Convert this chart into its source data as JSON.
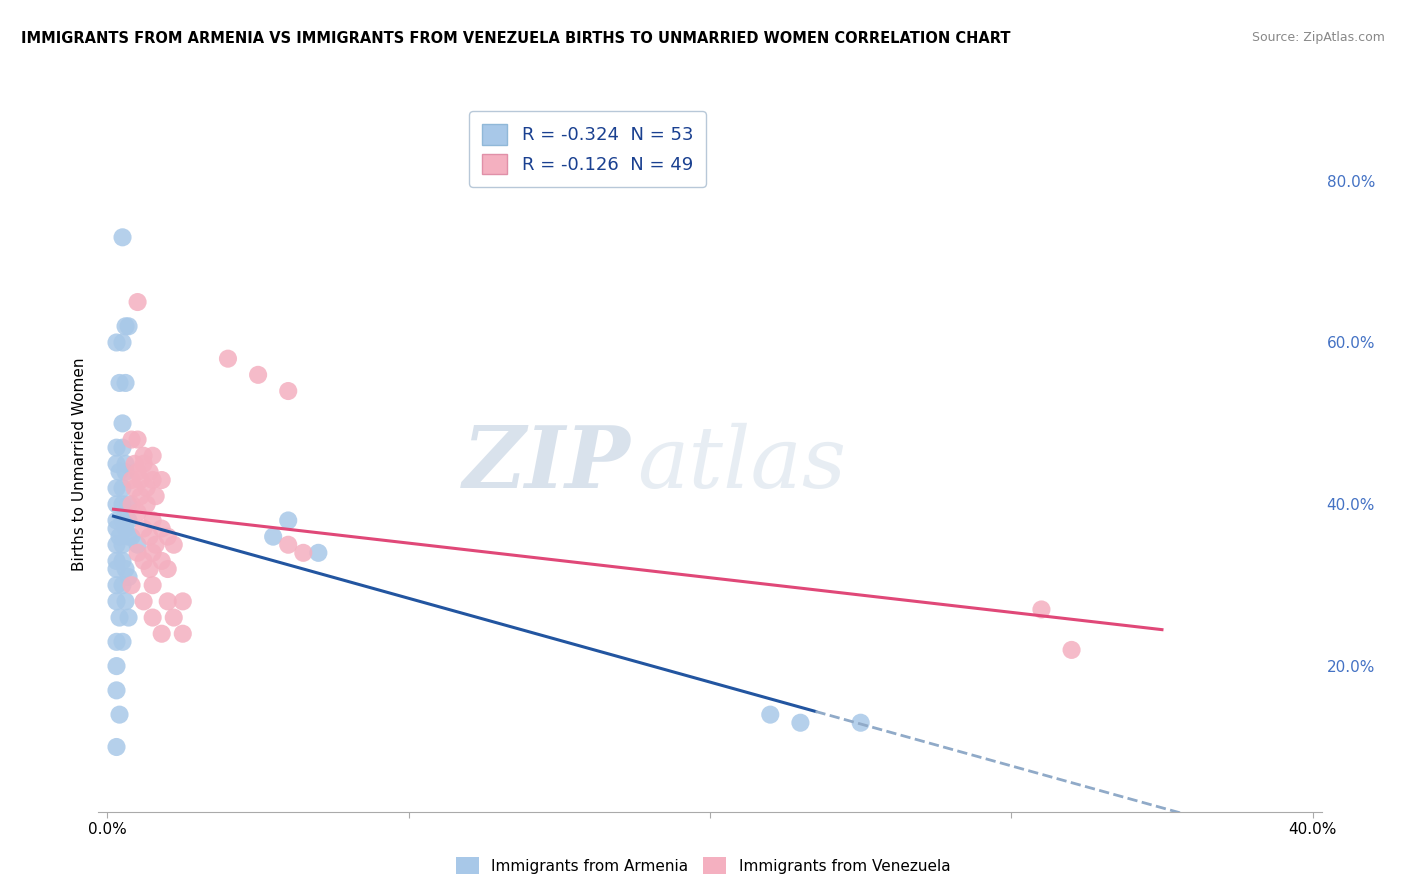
{
  "title": "IMMIGRANTS FROM ARMENIA VS IMMIGRANTS FROM VENEZUELA BIRTHS TO UNMARRIED WOMEN CORRELATION CHART",
  "source": "Source: ZipAtlas.com",
  "ylabel": "Births to Unmarried Women",
  "xlim": [
    -0.003,
    0.403
  ],
  "ylim": [
    0.02,
    0.88
  ],
  "yticks_right": [
    0.2,
    0.4,
    0.6,
    0.8
  ],
  "ytick_labels_right": [
    "20.0%",
    "40.0%",
    "60.0%",
    "80.0%"
  ],
  "xtick_positions": [
    0.0,
    0.1,
    0.2,
    0.3,
    0.4
  ],
  "xtick_labels": [
    "0.0%",
    "",
    "",
    "",
    "40.0%"
  ],
  "armenia_color": "#a8c8e8",
  "venezuela_color": "#f4b0c0",
  "armenia_line_color": "#2255a0",
  "armenia_dash_color": "#90aac8",
  "venezuela_line_color": "#e04878",
  "armenia_R": -0.324,
  "armenia_N": 53,
  "venezuela_R": -0.126,
  "venezuela_N": 49,
  "legend_label_armenia": "Immigrants from Armenia",
  "legend_label_venezuela": "Immigrants from Venezuela",
  "watermark_zip": "ZIP",
  "watermark_atlas": "atlas",
  "armenia_scatter": [
    [
      0.005,
      0.73
    ],
    [
      0.006,
      0.62
    ],
    [
      0.007,
      0.62
    ],
    [
      0.003,
      0.6
    ],
    [
      0.005,
      0.6
    ],
    [
      0.004,
      0.55
    ],
    [
      0.006,
      0.55
    ],
    [
      0.005,
      0.5
    ],
    [
      0.003,
      0.47
    ],
    [
      0.005,
      0.47
    ],
    [
      0.003,
      0.45
    ],
    [
      0.006,
      0.45
    ],
    [
      0.004,
      0.44
    ],
    [
      0.006,
      0.44
    ],
    [
      0.003,
      0.42
    ],
    [
      0.005,
      0.42
    ],
    [
      0.003,
      0.4
    ],
    [
      0.005,
      0.4
    ],
    [
      0.007,
      0.4
    ],
    [
      0.003,
      0.38
    ],
    [
      0.005,
      0.38
    ],
    [
      0.007,
      0.38
    ],
    [
      0.003,
      0.37
    ],
    [
      0.006,
      0.37
    ],
    [
      0.004,
      0.36
    ],
    [
      0.007,
      0.36
    ],
    [
      0.008,
      0.36
    ],
    [
      0.003,
      0.35
    ],
    [
      0.005,
      0.35
    ],
    [
      0.01,
      0.35
    ],
    [
      0.003,
      0.33
    ],
    [
      0.005,
      0.33
    ],
    [
      0.003,
      0.32
    ],
    [
      0.006,
      0.32
    ],
    [
      0.007,
      0.31
    ],
    [
      0.003,
      0.3
    ],
    [
      0.005,
      0.3
    ],
    [
      0.003,
      0.28
    ],
    [
      0.006,
      0.28
    ],
    [
      0.004,
      0.26
    ],
    [
      0.007,
      0.26
    ],
    [
      0.003,
      0.23
    ],
    [
      0.005,
      0.23
    ],
    [
      0.003,
      0.2
    ],
    [
      0.003,
      0.17
    ],
    [
      0.004,
      0.14
    ],
    [
      0.003,
      0.1
    ],
    [
      0.06,
      0.38
    ],
    [
      0.055,
      0.36
    ],
    [
      0.07,
      0.34
    ],
    [
      0.22,
      0.14
    ],
    [
      0.23,
      0.13
    ],
    [
      0.25,
      0.13
    ]
  ],
  "venezuela_scatter": [
    [
      0.01,
      0.65
    ],
    [
      0.04,
      0.58
    ],
    [
      0.05,
      0.56
    ],
    [
      0.06,
      0.54
    ],
    [
      0.008,
      0.48
    ],
    [
      0.01,
      0.48
    ],
    [
      0.012,
      0.46
    ],
    [
      0.015,
      0.46
    ],
    [
      0.009,
      0.45
    ],
    [
      0.012,
      0.45
    ],
    [
      0.01,
      0.44
    ],
    [
      0.014,
      0.44
    ],
    [
      0.008,
      0.43
    ],
    [
      0.011,
      0.43
    ],
    [
      0.015,
      0.43
    ],
    [
      0.018,
      0.43
    ],
    [
      0.009,
      0.42
    ],
    [
      0.013,
      0.42
    ],
    [
      0.011,
      0.41
    ],
    [
      0.016,
      0.41
    ],
    [
      0.008,
      0.4
    ],
    [
      0.013,
      0.4
    ],
    [
      0.01,
      0.39
    ],
    [
      0.015,
      0.38
    ],
    [
      0.012,
      0.37
    ],
    [
      0.018,
      0.37
    ],
    [
      0.014,
      0.36
    ],
    [
      0.02,
      0.36
    ],
    [
      0.016,
      0.35
    ],
    [
      0.022,
      0.35
    ],
    [
      0.01,
      0.34
    ],
    [
      0.015,
      0.34
    ],
    [
      0.012,
      0.33
    ],
    [
      0.018,
      0.33
    ],
    [
      0.014,
      0.32
    ],
    [
      0.02,
      0.32
    ],
    [
      0.008,
      0.3
    ],
    [
      0.015,
      0.3
    ],
    [
      0.012,
      0.28
    ],
    [
      0.02,
      0.28
    ],
    [
      0.025,
      0.28
    ],
    [
      0.015,
      0.26
    ],
    [
      0.022,
      0.26
    ],
    [
      0.018,
      0.24
    ],
    [
      0.025,
      0.24
    ],
    [
      0.06,
      0.35
    ],
    [
      0.065,
      0.34
    ],
    [
      0.31,
      0.27
    ],
    [
      0.32,
      0.22
    ]
  ]
}
